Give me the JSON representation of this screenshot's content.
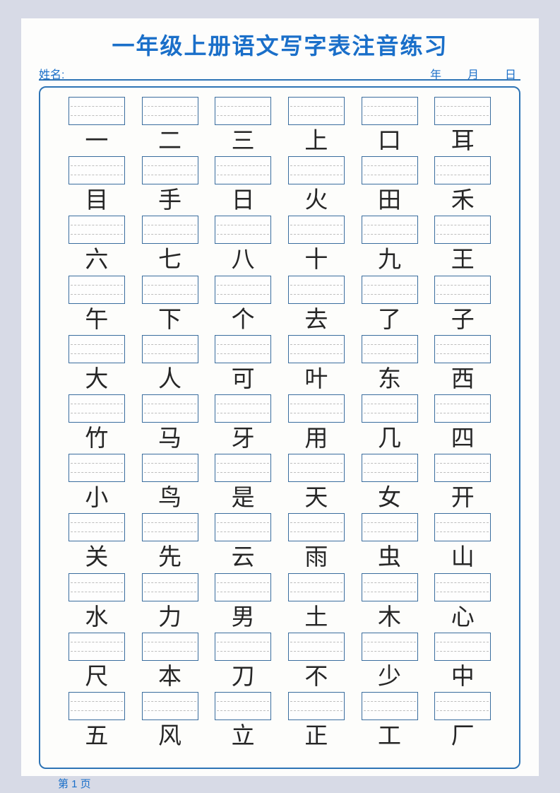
{
  "page": {
    "title": "一年级上册语文写字表注音练习",
    "name_label": "姓名:",
    "date_labels": {
      "year": "年",
      "month": "月",
      "day": "日"
    },
    "footer_page_label": "第 1 页"
  },
  "colors": {
    "accent_blue": "#1a6fc9",
    "line_blue": "#2e74b5",
    "box_border_blue": "#3a6d9e",
    "dashed_line_gray": "#bdbdbd",
    "hanzi_color": "#262626",
    "outer_background": "#d7dae6",
    "page_background": "#fdfdfc"
  },
  "grid": {
    "columns": 6,
    "rows": [
      [
        "一",
        "二",
        "三",
        "上",
        "口",
        "耳"
      ],
      [
        "目",
        "手",
        "日",
        "火",
        "田",
        "禾"
      ],
      [
        "六",
        "七",
        "八",
        "十",
        "九",
        "王"
      ],
      [
        "午",
        "下",
        "个",
        "去",
        "了",
        "子"
      ],
      [
        "大",
        "人",
        "可",
        "叶",
        "东",
        "西"
      ],
      [
        "竹",
        "马",
        "牙",
        "用",
        "几",
        "四"
      ],
      [
        "小",
        "鸟",
        "是",
        "天",
        "女",
        "开"
      ],
      [
        "关",
        "先",
        "云",
        "雨",
        "虫",
        "山"
      ],
      [
        "水",
        "力",
        "男",
        "土",
        "木",
        "心"
      ],
      [
        "尺",
        "本",
        "刀",
        "不",
        "少",
        "中"
      ],
      [
        "五",
        "风",
        "立",
        "正",
        "工",
        "厂"
      ]
    ]
  }
}
